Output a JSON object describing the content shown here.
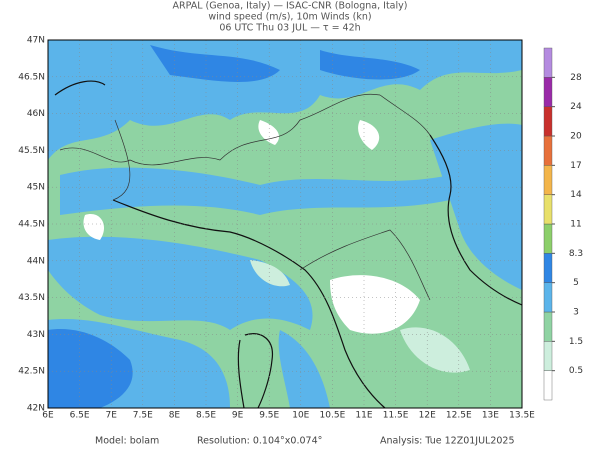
{
  "header": {
    "line1": "ARPAL (Genoa, Italy)  —  ISAC-CNR (Bologna, Italy)",
    "line2": "wind speed (m/s), 10m Winds (kn)",
    "line3": "06 UTC Thu 03 JUL  —  τ = 42h"
  },
  "map": {
    "lonlim": [
      6,
      13.5
    ],
    "latlim": [
      42,
      47
    ],
    "lat_ticks": [
      {
        "value": 42,
        "label": "42N"
      },
      {
        "value": 42.5,
        "label": "42.5N"
      },
      {
        "value": 43,
        "label": "43N"
      },
      {
        "value": 43.5,
        "label": "43.5N"
      },
      {
        "value": 44,
        "label": "44N"
      },
      {
        "value": 44.5,
        "label": "44.5N"
      },
      {
        "value": 45,
        "label": "45N"
      },
      {
        "value": 45.5,
        "label": "45.5N"
      },
      {
        "value": 46,
        "label": "46N"
      },
      {
        "value": 46.5,
        "label": "46.5N"
      },
      {
        "value": 47,
        "label": "47N"
      }
    ],
    "lon_ticks": [
      {
        "value": 6,
        "label": "6E"
      },
      {
        "value": 6.5,
        "label": "6.5E"
      },
      {
        "value": 7,
        "label": "7E"
      },
      {
        "value": 7.5,
        "label": "7.5E"
      },
      {
        "value": 8,
        "label": "8E"
      },
      {
        "value": 8.5,
        "label": "8.5E"
      },
      {
        "value": 9,
        "label": "9E"
      },
      {
        "value": 9.5,
        "label": "9.5E"
      },
      {
        "value": 10,
        "label": "10E"
      },
      {
        "value": 10.5,
        "label": "10.5E"
      },
      {
        "value": 11,
        "label": "11E"
      },
      {
        "value": 11.5,
        "label": "11.5E"
      },
      {
        "value": 12,
        "label": "12E"
      },
      {
        "value": 12.5,
        "label": "12.5E"
      },
      {
        "value": 13,
        "label": "13E"
      },
      {
        "value": 13.5,
        "label": "13.5E"
      }
    ]
  },
  "colorbar": {
    "levels": [
      0.5,
      1.5,
      3,
      5,
      8.3,
      11,
      14,
      17,
      20,
      24,
      28
    ],
    "colors": [
      "#ffffff",
      "#cdeedd",
      "#8fd3a3",
      "#5bb4ea",
      "#2f86e4",
      "#8ccf6a",
      "#e8e06a",
      "#f3b54a",
      "#e7703a",
      "#c8302c",
      "#9a2aa8",
      "#b48be0"
    ]
  },
  "footer": {
    "model": "Model: bolam",
    "resolution": "Resolution: 0.104°x0.074°",
    "analysis": "Analysis: Tue 12Z01JUL2025"
  }
}
